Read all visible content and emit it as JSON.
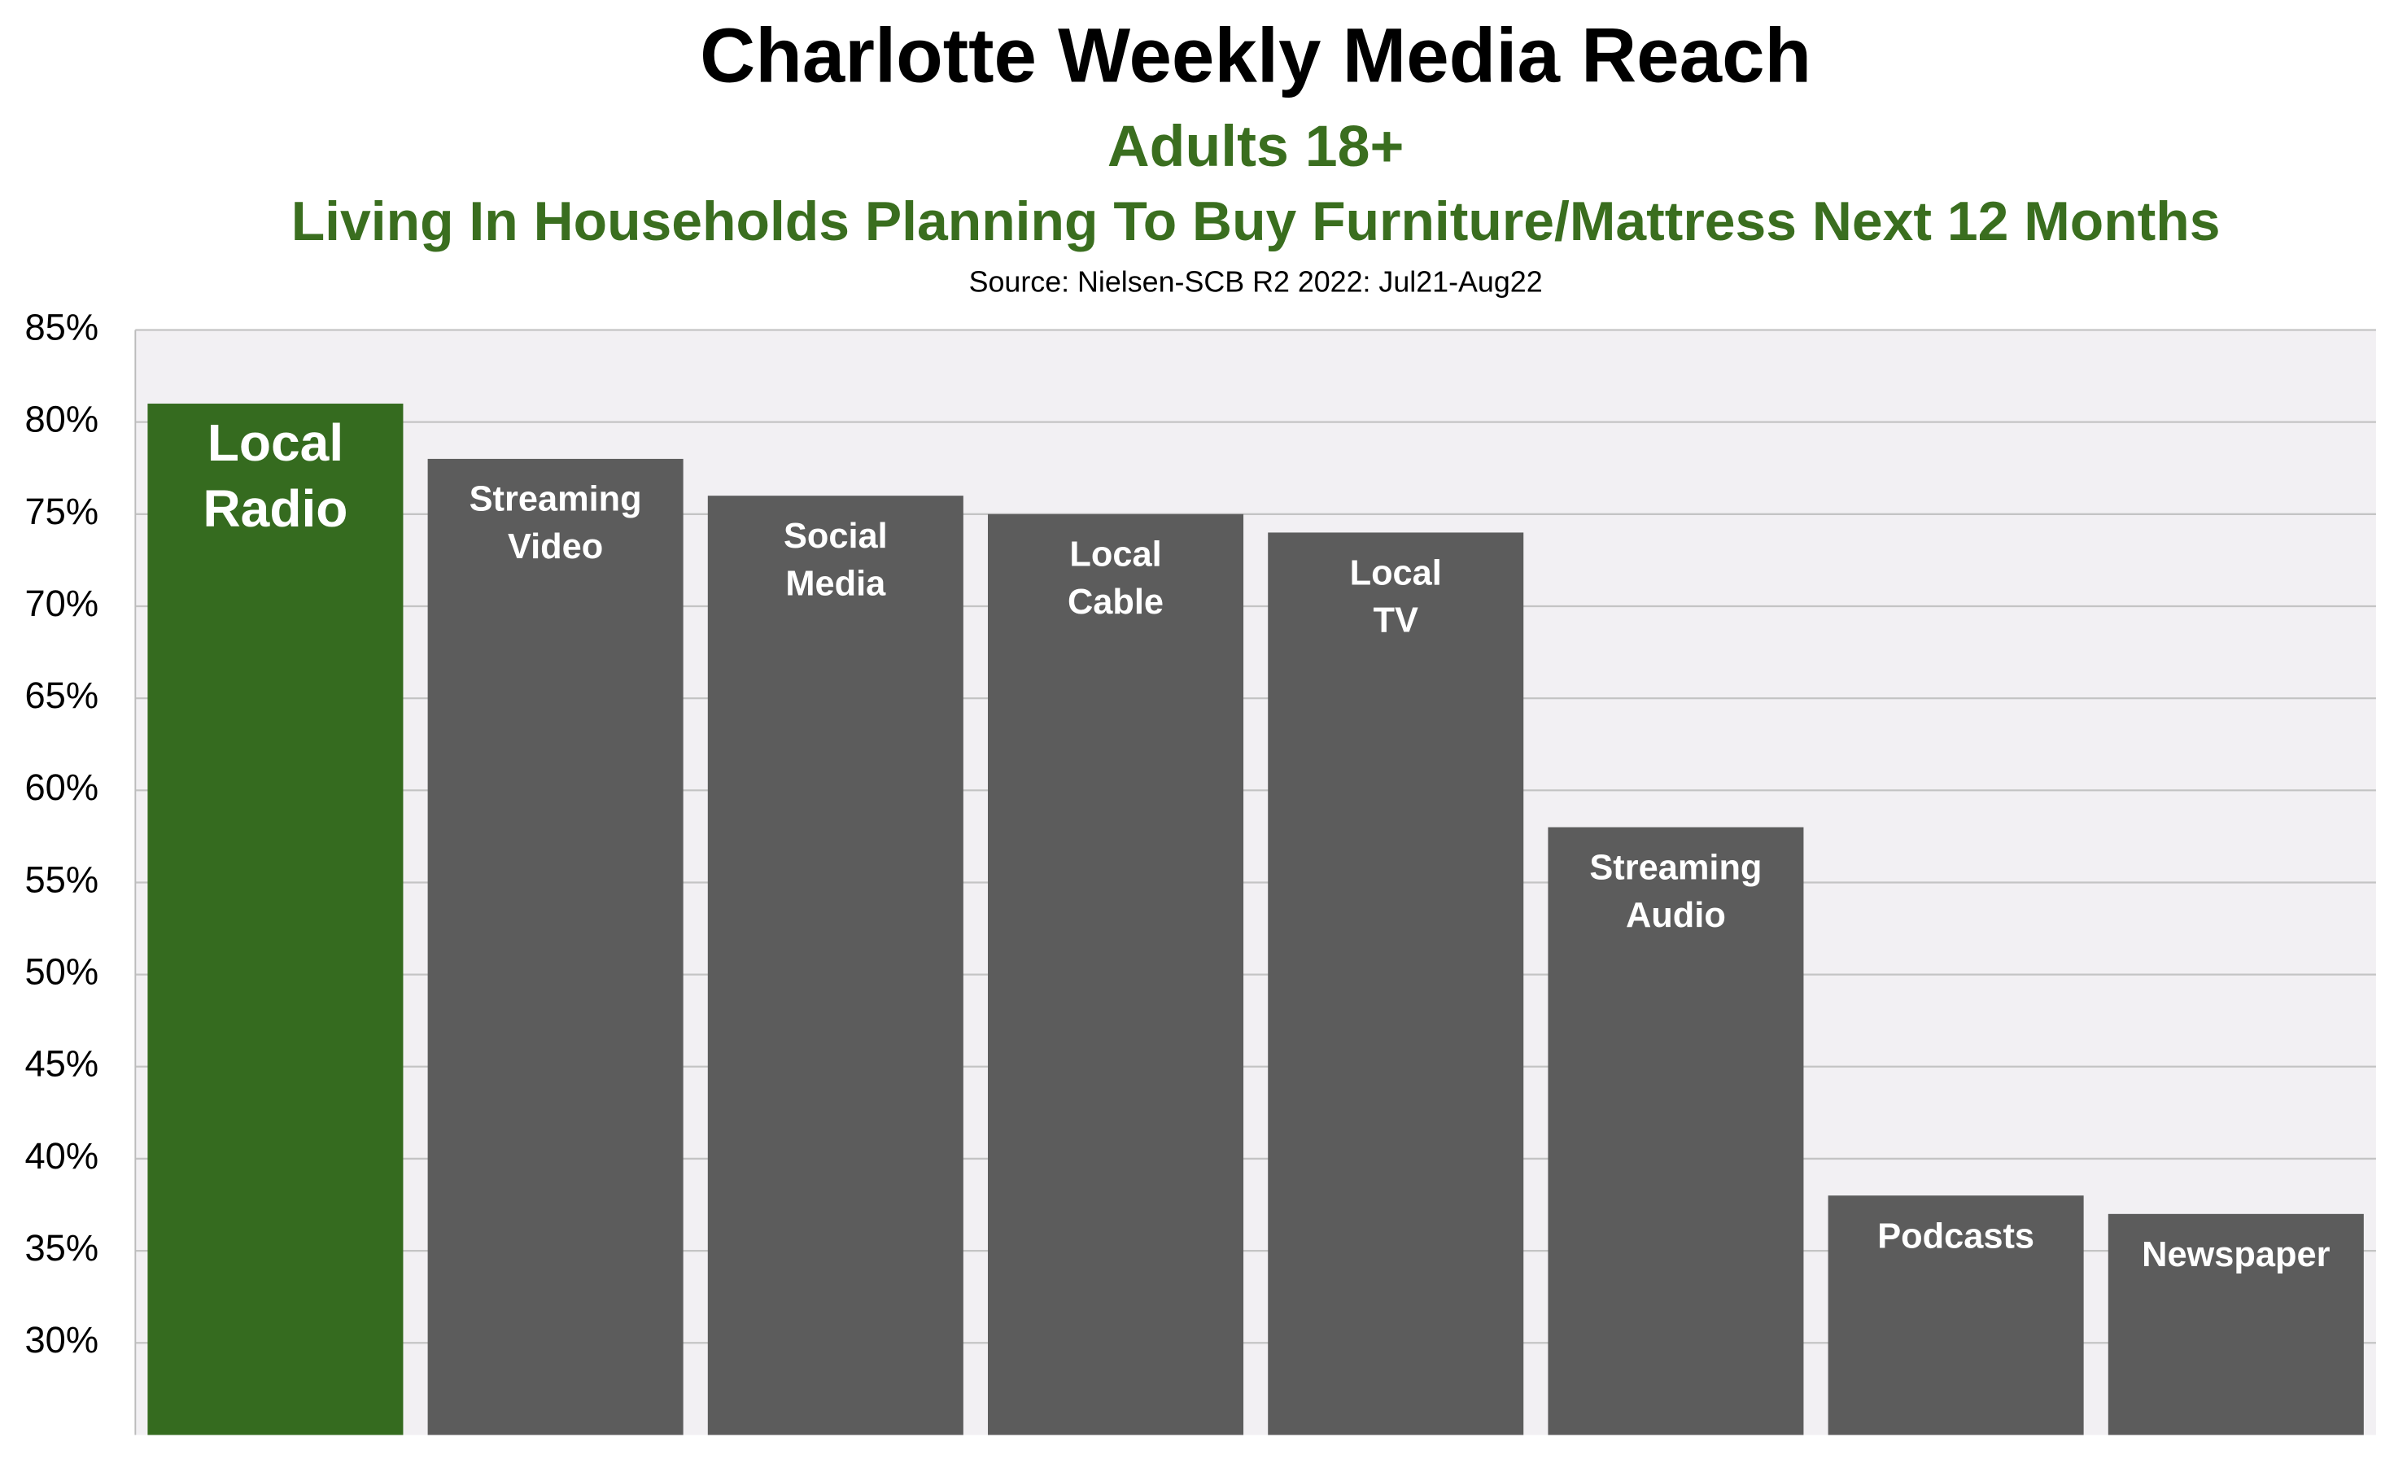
{
  "chart_data": {
    "type": "bar",
    "title": "Charlotte Weekly Media Reach",
    "subtitle": "Adults 18+",
    "subtitle2": "Living In Households Planning To Buy Furniture/Mattress Next 12 Months",
    "source": "Source: Nielsen-SCB R2 2022:  Jul21-Aug22",
    "categories": [
      "Local Radio",
      "Streaming Video",
      "Social Media",
      "Local Cable",
      "Local TV",
      "Streaming Audio",
      "Podcasts",
      "Newspaper"
    ],
    "values": [
      81,
      78,
      76,
      75,
      74,
      58,
      38,
      37
    ],
    "colors": [
      "#356b1f",
      "#5c5c5c",
      "#5c5c5c",
      "#5c5c5c",
      "#5c5c5c",
      "#5c5c5c",
      "#5c5c5c",
      "#5c5c5c"
    ],
    "ylim": [
      25,
      85
    ],
    "yticks": [
      {
        "value": 30,
        "label": "30%"
      },
      {
        "value": 35,
        "label": "35%"
      },
      {
        "value": 40,
        "label": "40%"
      },
      {
        "value": 45,
        "label": "45%"
      },
      {
        "value": 50,
        "label": "50%"
      },
      {
        "value": 55,
        "label": "55%"
      },
      {
        "value": 60,
        "label": "60%"
      },
      {
        "value": 65,
        "label": "65%"
      },
      {
        "value": 70,
        "label": "70%"
      },
      {
        "value": 75,
        "label": "75%"
      },
      {
        "value": 80,
        "label": "80%"
      },
      {
        "value": 85,
        "label": "85%"
      }
    ],
    "grid": true
  }
}
